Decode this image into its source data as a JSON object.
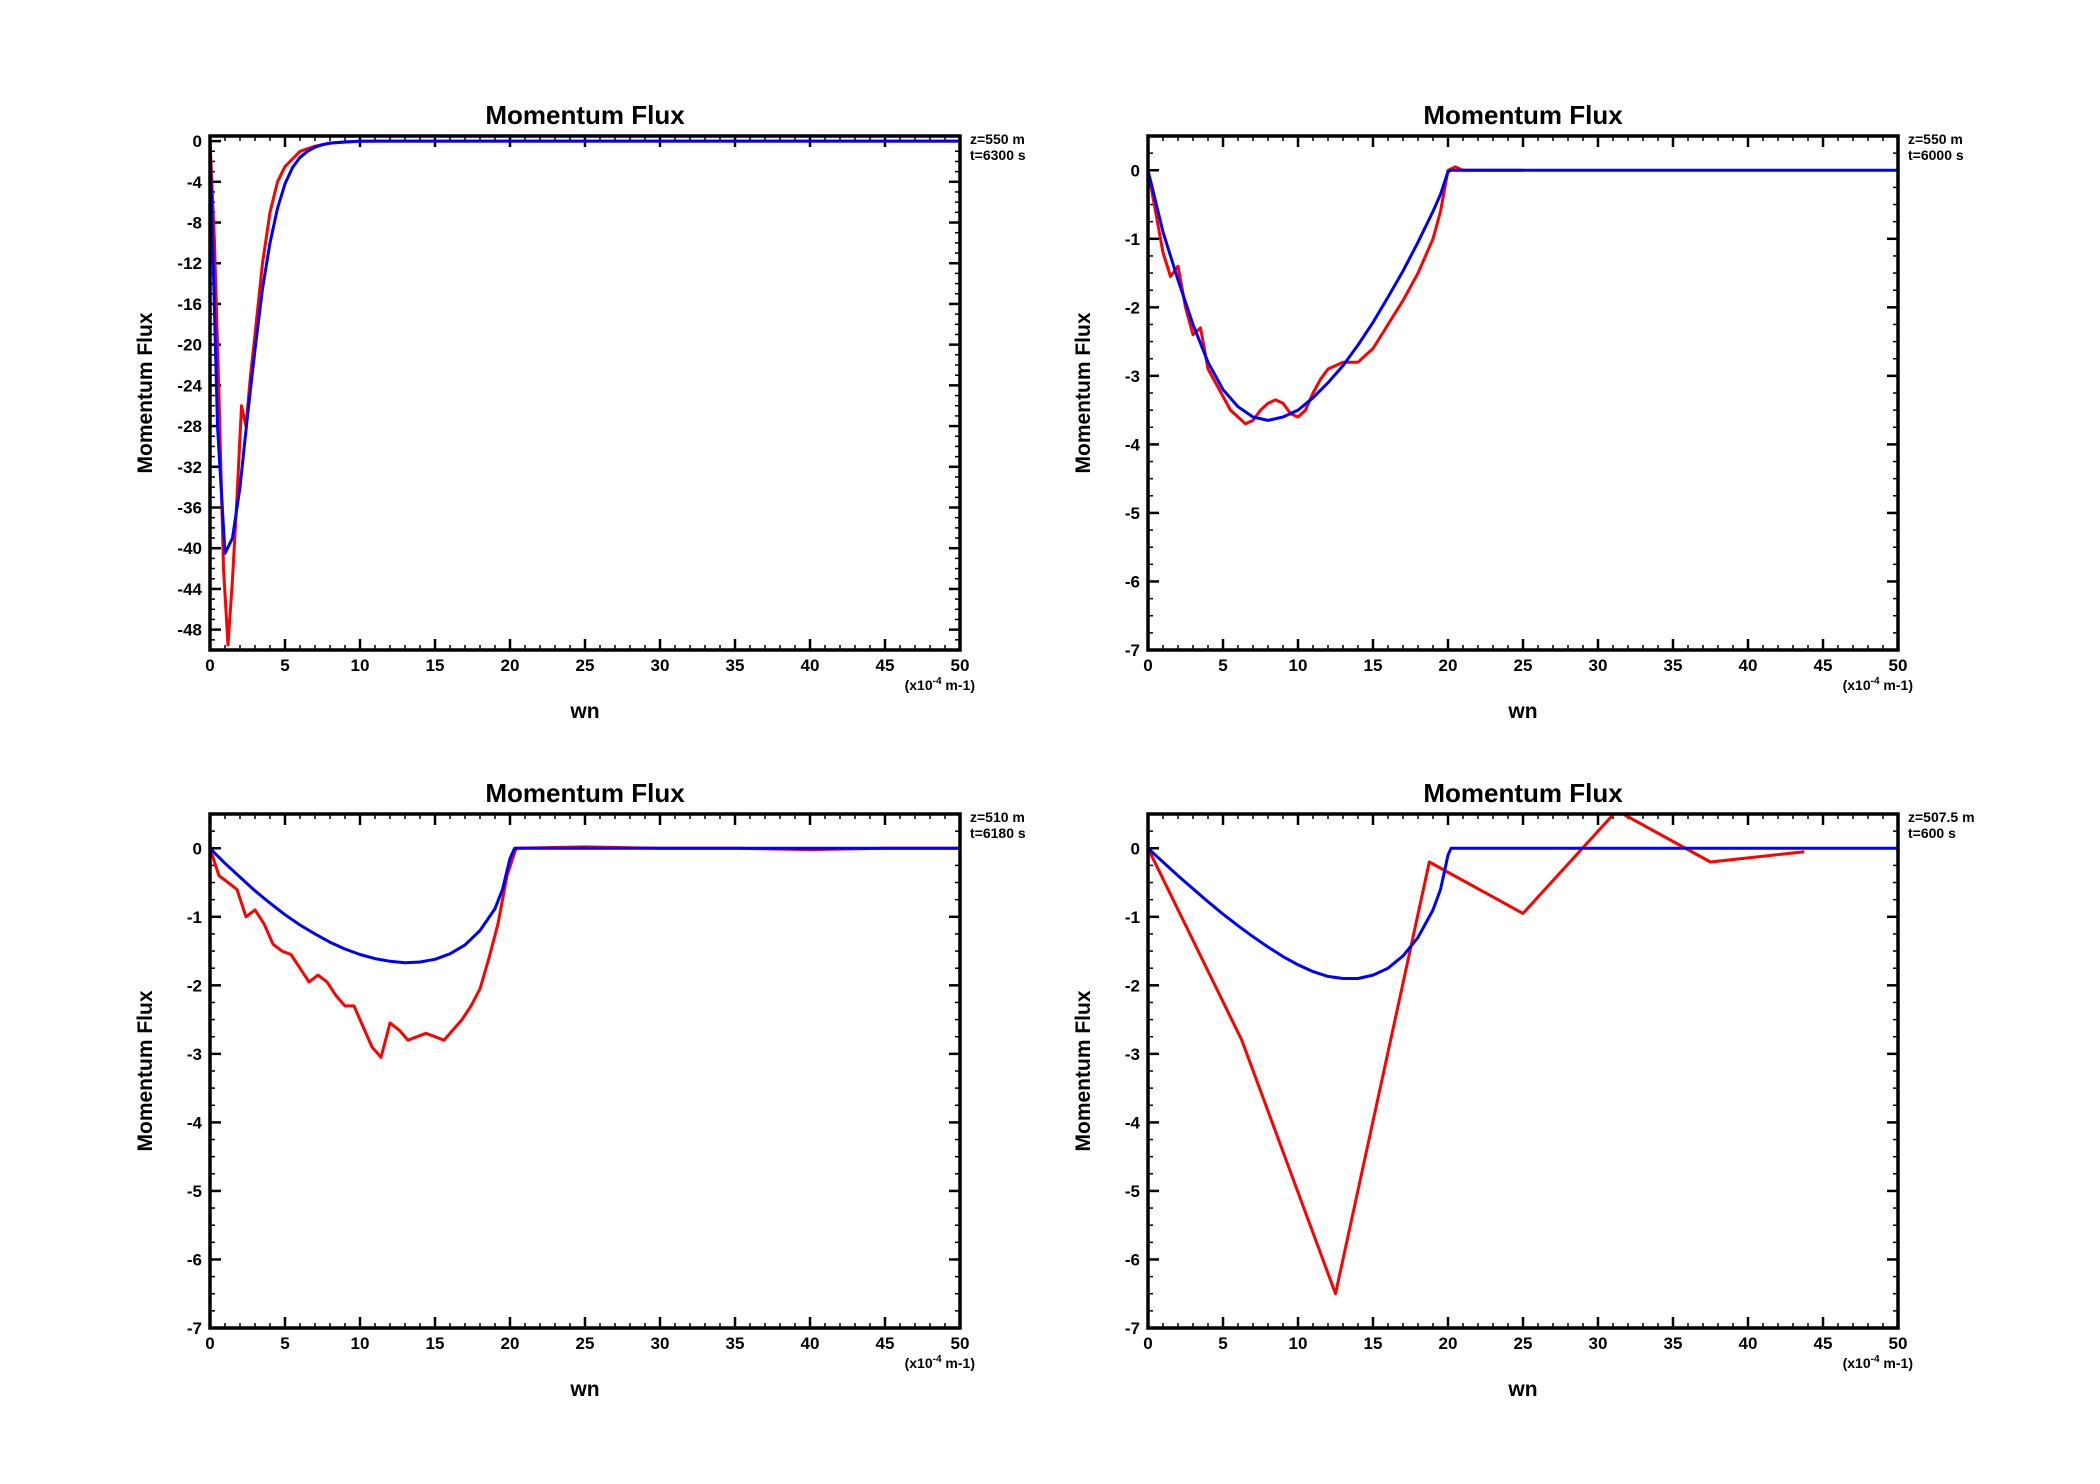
{
  "chart_data": [
    {
      "type": "line",
      "title": "Momentum Flux",
      "xlabel": "wn",
      "xunit_base": "(x10",
      "xunit_exp": "-4",
      "xunit_tail": " m-1)",
      "ylabel": "Momentum Flux",
      "annotation": [
        "z=550 m",
        "t=6300 s"
      ],
      "xlim": [
        0,
        50
      ],
      "ylim": [
        -50,
        0.5
      ],
      "xticks": [
        0,
        5,
        10,
        15,
        20,
        25,
        30,
        35,
        40,
        45,
        50
      ],
      "xtick_labels": [
        "0",
        "5",
        "10",
        "15",
        "20",
        "25",
        "30",
        "35",
        "40",
        "45",
        "50"
      ],
      "yticks": [
        0,
        -4,
        -8,
        -12,
        -16,
        -20,
        -24,
        -28,
        -32,
        -36,
        -40,
        -44,
        -48
      ],
      "ytick_labels": [
        "0",
        "-4",
        "-8",
        "-12",
        "-16",
        "-20",
        "-24",
        "-28",
        "-32",
        "-36",
        "-40",
        "-44",
        "-48"
      ],
      "grid": false,
      "series": [
        {
          "color": "#ff0000",
          "x": [
            0,
            0.3,
            0.6,
            0.9,
            1.2,
            1.5,
            1.8,
            2.1,
            2.4,
            2.7,
            3.0,
            3.5,
            4.0,
            4.5,
            5.0,
            6.0,
            7.0,
            8.0,
            10.0,
            15.0,
            20.0,
            30.0,
            40.0,
            50.0
          ],
          "y": [
            0,
            -10,
            -25,
            -42,
            -49.5,
            -43,
            -35,
            -26,
            -28,
            -23,
            -19,
            -12,
            -7,
            -4,
            -2.5,
            -1.0,
            -0.5,
            -0.2,
            0,
            0,
            0,
            0,
            0,
            0
          ]
        },
        {
          "color": "#0000ff",
          "x": [
            0,
            0.5,
            1.0,
            1.5,
            2.0,
            2.5,
            3.0,
            3.5,
            4.0,
            4.5,
            5.0,
            5.5,
            6.0,
            6.5,
            7.0,
            7.5,
            8.0,
            9.0,
            10.0,
            12.0,
            15.0,
            20.0,
            30.0,
            40.0,
            50.0
          ],
          "y": [
            0,
            -28,
            -40.5,
            -39,
            -34,
            -27,
            -20.5,
            -14.5,
            -10,
            -6.6,
            -4.2,
            -2.6,
            -1.6,
            -1.0,
            -0.6,
            -0.35,
            -0.2,
            -0.08,
            -0.02,
            0,
            0,
            0,
            0,
            0,
            0
          ]
        }
      ]
    },
    {
      "type": "line",
      "title": "Momentum Flux",
      "xlabel": "wn",
      "xunit_base": "(x10",
      "xunit_exp": "-4",
      "xunit_tail": " m-1)",
      "ylabel": "Momentum Flux",
      "annotation": [
        "z=550 m",
        "t=6000 s"
      ],
      "xlim": [
        0,
        50
      ],
      "ylim": [
        -7,
        0.5
      ],
      "xticks": [
        0,
        5,
        10,
        15,
        20,
        25,
        30,
        35,
        40,
        45,
        50
      ],
      "xtick_labels": [
        "0",
        "5",
        "10",
        "15",
        "20",
        "25",
        "30",
        "35",
        "40",
        "45",
        "50"
      ],
      "yticks": [
        0,
        -1,
        -2,
        -3,
        -4,
        -5,
        -6,
        -7
      ],
      "ytick_labels": [
        "0",
        "-1",
        "-2",
        "-3",
        "-4",
        "-5",
        "-6",
        "-7"
      ],
      "grid": false,
      "series": [
        {
          "color": "#ff0000",
          "x": [
            0,
            0.5,
            1.0,
            1.5,
            2.0,
            2.5,
            3.0,
            3.5,
            4.0,
            4.5,
            5.0,
            5.5,
            6.0,
            6.5,
            7.0,
            7.5,
            8.0,
            8.5,
            9.0,
            9.5,
            10.0,
            10.5,
            11.0,
            11.5,
            12.0,
            12.5,
            13.0,
            14.0,
            15.0,
            16.0,
            17.0,
            18.0,
            19.0,
            19.5,
            20.0,
            20.5,
            21.0,
            22.0,
            25.0
          ],
          "y": [
            0,
            -0.6,
            -1.2,
            -1.55,
            -1.4,
            -2.0,
            -2.4,
            -2.3,
            -2.9,
            -3.1,
            -3.3,
            -3.5,
            -3.6,
            -3.7,
            -3.65,
            -3.5,
            -3.4,
            -3.35,
            -3.4,
            -3.55,
            -3.6,
            -3.5,
            -3.25,
            -3.05,
            -2.9,
            -2.85,
            -2.8,
            -2.8,
            -2.6,
            -2.25,
            -1.9,
            -1.5,
            -1.0,
            -0.6,
            0,
            0.05,
            0,
            0,
            0
          ]
        },
        {
          "color": "#0000ff",
          "x": [
            0,
            0.5,
            1.0,
            2.0,
            3.0,
            4.0,
            5.0,
            6.0,
            7.0,
            8.0,
            9.0,
            10.0,
            11.0,
            12.0,
            13.0,
            14.0,
            15.0,
            16.0,
            17.0,
            18.0,
            19.0,
            19.5,
            20.0,
            20.2,
            30.0,
            40.0,
            50.0
          ],
          "y": [
            0,
            -0.45,
            -0.9,
            -1.6,
            -2.25,
            -2.8,
            -3.2,
            -3.45,
            -3.6,
            -3.65,
            -3.6,
            -3.5,
            -3.32,
            -3.1,
            -2.85,
            -2.55,
            -2.22,
            -1.85,
            -1.47,
            -1.05,
            -0.6,
            -0.35,
            -0.02,
            0,
            0,
            0,
            0
          ]
        }
      ]
    },
    {
      "type": "line",
      "title": "Momentum Flux",
      "xlabel": "wn",
      "xunit_base": "(x10",
      "xunit_exp": "-4",
      "xunit_tail": " m-1)",
      "ylabel": "Momentum Flux",
      "annotation": [
        "z=510 m",
        "t=6180 s"
      ],
      "xlim": [
        0,
        50
      ],
      "ylim": [
        -7,
        0.5
      ],
      "xticks": [
        0,
        5,
        10,
        15,
        20,
        25,
        30,
        35,
        40,
        45,
        50
      ],
      "xtick_labels": [
        "0",
        "5",
        "10",
        "15",
        "20",
        "25",
        "30",
        "35",
        "40",
        "45",
        "50"
      ],
      "yticks": [
        0,
        -1,
        -2,
        -3,
        -4,
        -5,
        -6,
        -7
      ],
      "ytick_labels": [
        "0",
        "-1",
        "-2",
        "-3",
        "-4",
        "-5",
        "-6",
        "-7"
      ],
      "grid": false,
      "series": [
        {
          "color": "#ff0000",
          "x": [
            0,
            0.6,
            1.2,
            1.8,
            2.4,
            3.0,
            3.6,
            4.2,
            4.8,
            5.4,
            6.0,
            6.6,
            7.2,
            7.8,
            8.4,
            9.0,
            9.6,
            10.2,
            10.8,
            11.4,
            12.0,
            12.6,
            13.2,
            13.8,
            14.4,
            15.0,
            15.6,
            16.2,
            16.8,
            17.4,
            18.0,
            18.6,
            19.2,
            19.8,
            20.4,
            25.0,
            30.0,
            35.0,
            40.0,
            45.0,
            50.0
          ],
          "y": [
            0,
            -0.4,
            -0.5,
            -0.6,
            -1.0,
            -0.9,
            -1.1,
            -1.4,
            -1.5,
            -1.55,
            -1.75,
            -1.95,
            -1.85,
            -1.95,
            -2.15,
            -2.3,
            -2.3,
            -2.6,
            -2.9,
            -3.05,
            -2.55,
            -2.65,
            -2.8,
            -2.75,
            -2.7,
            -2.75,
            -2.8,
            -2.65,
            -2.5,
            -2.3,
            -2.05,
            -1.6,
            -1.1,
            -0.4,
            0,
            0.02,
            0,
            0,
            -0.02,
            0,
            0
          ]
        },
        {
          "color": "#0000ff",
          "x": [
            0,
            1.0,
            2.0,
            3.0,
            4.0,
            5.0,
            6.0,
            7.0,
            8.0,
            9.0,
            10.0,
            11.0,
            12.0,
            13.0,
            14.0,
            15.0,
            16.0,
            17.0,
            18.0,
            19.0,
            19.5,
            20.0,
            20.3,
            30.0,
            40.0,
            50.0
          ],
          "y": [
            0,
            -0.22,
            -0.42,
            -0.62,
            -0.8,
            -0.97,
            -1.12,
            -1.25,
            -1.37,
            -1.47,
            -1.55,
            -1.61,
            -1.65,
            -1.67,
            -1.66,
            -1.62,
            -1.54,
            -1.41,
            -1.2,
            -0.88,
            -0.6,
            -0.15,
            0,
            0,
            0,
            0
          ]
        }
      ]
    },
    {
      "type": "line",
      "title": "Momentum Flux",
      "xlabel": "wn",
      "xunit_base": "(x10",
      "xunit_exp": "-4",
      "xunit_tail": " m-1)",
      "ylabel": "Momentum Flux",
      "annotation": [
        "z=507.5 m",
        "t=600 s"
      ],
      "xlim": [
        0,
        50
      ],
      "ylim": [
        -7,
        0.5
      ],
      "xticks": [
        0,
        5,
        10,
        15,
        20,
        25,
        30,
        35,
        40,
        45,
        50
      ],
      "xtick_labels": [
        "0",
        "5",
        "10",
        "15",
        "20",
        "25",
        "30",
        "35",
        "40",
        "45",
        "50"
      ],
      "yticks": [
        0,
        -1,
        -2,
        -3,
        -4,
        -5,
        -6,
        -7
      ],
      "ytick_labels": [
        "0",
        "-1",
        "-2",
        "-3",
        "-4",
        "-5",
        "-6",
        "-7"
      ],
      "grid": false,
      "series": [
        {
          "color": "#ff0000",
          "x": [
            0,
            6.25,
            12.5,
            18.75,
            25.0,
            31.25,
            37.5,
            43.75
          ],
          "y": [
            0,
            -2.8,
            -6.5,
            -0.2,
            -0.95,
            0.55,
            -0.2,
            -0.05
          ]
        },
        {
          "color": "#0000ff",
          "x": [
            0,
            1.0,
            2.0,
            3.0,
            4.0,
            5.0,
            6.0,
            7.0,
            8.0,
            9.0,
            10.0,
            11.0,
            12.0,
            13.0,
            14.0,
            15.0,
            16.0,
            17.0,
            18.0,
            19.0,
            19.5,
            20.0,
            20.2,
            30.0,
            40.0,
            50.0
          ],
          "y": [
            0,
            -0.2,
            -0.4,
            -0.59,
            -0.78,
            -0.96,
            -1.13,
            -1.29,
            -1.44,
            -1.58,
            -1.7,
            -1.8,
            -1.87,
            -1.9,
            -1.9,
            -1.85,
            -1.75,
            -1.57,
            -1.3,
            -0.9,
            -0.6,
            -0.1,
            0,
            0,
            0,
            0
          ]
        }
      ]
    }
  ]
}
